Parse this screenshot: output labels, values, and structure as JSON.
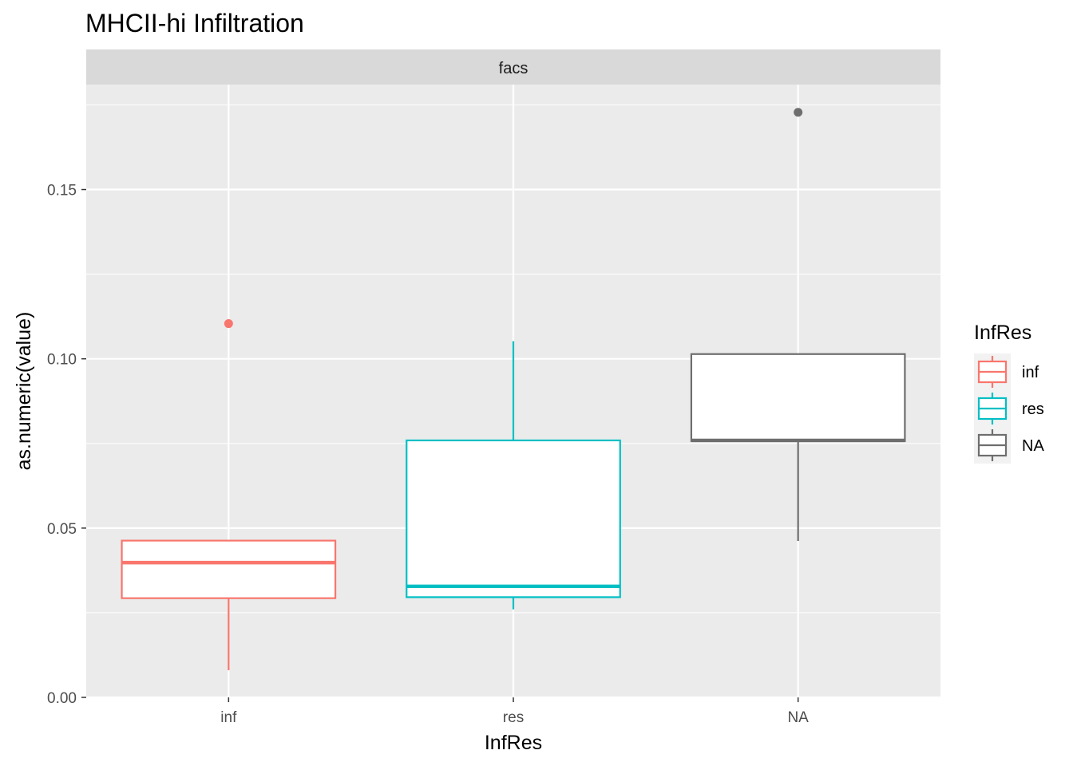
{
  "chart_data": {
    "type": "boxplot",
    "title": "MHCII-hi Infiltration",
    "facet_label": "facs",
    "xlabel": "InfRes",
    "ylabel": "as.numeric(value)",
    "categories": [
      "inf",
      "res",
      "NA"
    ],
    "y_ticks": [
      0.0,
      0.05,
      0.1,
      0.15
    ],
    "y_tick_labels": [
      "0.00",
      "0.05",
      "0.10",
      "0.15"
    ],
    "ylim": [
      0.0,
      0.181
    ],
    "grid": true,
    "legend": {
      "title": "InfRes",
      "position": "right",
      "entries": [
        "inf",
        "res",
        "NA"
      ]
    },
    "series": [
      {
        "name": "inf",
        "color": "#F8766D",
        "whisker_low": 0.008,
        "q1": 0.0293,
        "median": 0.0398,
        "q3": 0.0463,
        "whisker_high": 0.0463,
        "outliers": [
          0.1104
        ]
      },
      {
        "name": "res",
        "color": "#00BFC4",
        "whisker_low": 0.026,
        "q1": 0.0296,
        "median": 0.0328,
        "q3": 0.0759,
        "whisker_high": 0.1052,
        "outliers": []
      },
      {
        "name": "NA",
        "color": "#6E6E6E",
        "whisker_low": 0.0462,
        "q1": 0.0757,
        "median": 0.0759,
        "q3": 0.1014,
        "whisker_high": 0.1014,
        "outliers": [
          0.1728
        ]
      }
    ]
  }
}
